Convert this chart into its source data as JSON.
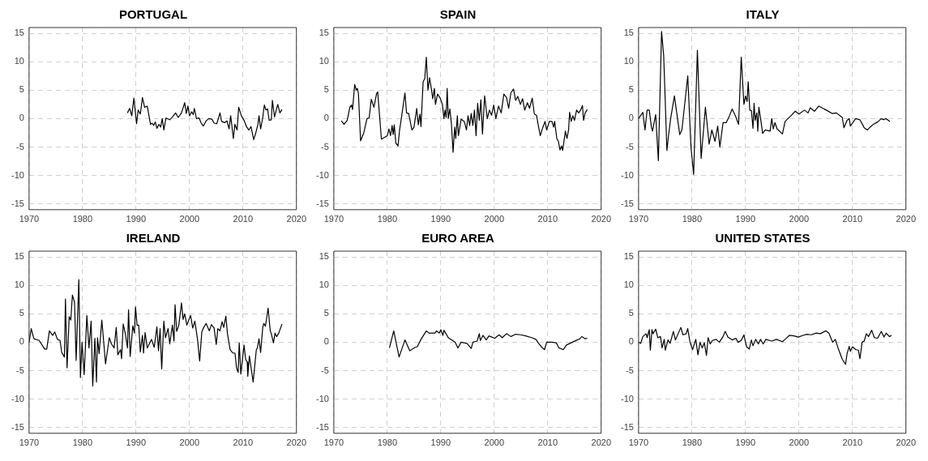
{
  "chart_data": [
    {
      "type": "line",
      "title": "PORTUGAL",
      "color": "#000000",
      "xlim": [
        1970,
        2020
      ],
      "xticks": [
        1970,
        1980,
        1990,
        2000,
        2010,
        2020
      ],
      "ylim": [
        -16,
        16
      ],
      "yticks": [
        -15,
        -10,
        -5,
        0,
        5,
        10,
        15
      ],
      "grid": true,
      "x": [
        1988.4,
        1988.8,
        1989.2,
        1989.6,
        1990.1,
        1990.4,
        1990.8,
        1991.2,
        1991.6,
        1992.1,
        1992.7,
        1993.0,
        1993.3,
        1993.6,
        1993.9,
        1994.3,
        1994.6,
        1994.9,
        1995.2,
        1995.6,
        1996.3,
        1996.8,
        1997.4,
        1997.9,
        1998.5,
        1999.1,
        1999.4,
        1999.7,
        2000.0,
        2000.4,
        2000.7,
        2000.9,
        2001.3,
        2001.8,
        2002.2,
        2002.6,
        2003.1,
        2003.6,
        2004.2,
        2004.6,
        2005.1,
        2005.7,
        2006.0,
        2006.6,
        2007.0,
        2007.4,
        2007.7,
        2008.2,
        2008.5,
        2008.9,
        2009.2,
        2009.7,
        2010.2,
        2010.7,
        2011.1,
        2011.5,
        2012.0,
        2012.4,
        2012.8,
        2013.0,
        2013.3,
        2013.7,
        2014.0,
        2014.3,
        2014.6,
        2014.9,
        2015.3,
        2015.5,
        2015.9,
        2016.5,
        2016.9,
        2017.3
      ],
      "values": [
        1.0,
        1.8,
        0.5,
        3.6,
        -0.9,
        1.5,
        0.8,
        3.7,
        2.0,
        2.2,
        -1.0,
        -0.8,
        -1.2,
        -0.6,
        -1.7,
        -1.0,
        -1.5,
        0.0,
        -2.0,
        0.1,
        -0.2,
        0.3,
        1.0,
        0.2,
        1.0,
        2.8,
        0.9,
        2.2,
        0.5,
        1.2,
        0.7,
        1.8,
        0.0,
        0.1,
        -0.8,
        -1.3,
        -0.4,
        0.0,
        -0.1,
        -0.8,
        -0.9,
        1.0,
        -0.5,
        -0.7,
        -0.4,
        -1.8,
        0.5,
        -3.5,
        -1.0,
        -2.0,
        2.0,
        0.5,
        -0.3,
        -1.5,
        -2.0,
        -1.4,
        -3.7,
        -2.5,
        -1.0,
        0.5,
        -1.8,
        0.2,
        2.4,
        1.5,
        1.7,
        -0.3,
        -0.2,
        3.2,
        0.3,
        2.5,
        1.0,
        1.6
      ]
    },
    {
      "type": "line",
      "title": "SPAIN",
      "color": "#000000",
      "xlim": [
        1970,
        2020
      ],
      "xticks": [
        1970,
        1980,
        1990,
        2000,
        2010,
        2020
      ],
      "ylim": [
        -16,
        16
      ],
      "yticks": [
        -15,
        -10,
        -5,
        0,
        5,
        10,
        15
      ],
      "grid": true,
      "x": [
        1971.4,
        1971.9,
        1972.5,
        1973.0,
        1973.3,
        1973.5,
        1973.9,
        1974.2,
        1974.4,
        1974.6,
        1975.0,
        1975.6,
        1976.2,
        1976.6,
        1977.0,
        1977.5,
        1978.0,
        1978.2,
        1978.9,
        1979.5,
        1980.0,
        1980.3,
        1980.6,
        1980.9,
        1981.1,
        1981.3,
        1981.6,
        1982.0,
        1982.3,
        1982.7,
        1983.3,
        1983.6,
        1984.0,
        1984.6,
        1985.0,
        1985.5,
        1985.8,
        1986.1,
        1986.3,
        1986.7,
        1987.0,
        1987.3,
        1987.6,
        1987.9,
        1988.2,
        1988.5,
        1988.8,
        1989.0,
        1989.4,
        1989.9,
        1990.3,
        1990.6,
        1990.8,
        1991.0,
        1991.2,
        1991.4,
        1991.7,
        1992.0,
        1992.3,
        1992.6,
        1992.8,
        1993.1,
        1993.3,
        1993.8,
        1994.4,
        1994.8,
        1995.1,
        1995.4,
        1995.7,
        1996.0,
        1996.3,
        1996.6,
        1996.9,
        1997.2,
        1997.5,
        1997.8,
        1998.2,
        1998.7,
        1999.1,
        1999.5,
        1999.9,
        2000.3,
        2000.8,
        2001.3,
        2001.8,
        2002.3,
        2002.7,
        2003.1,
        2003.6,
        2004.0,
        2004.4,
        2004.9,
        2005.3,
        2005.7,
        2006.2,
        2006.6,
        2007.1,
        2007.5,
        2007.9,
        2008.2,
        2008.6,
        2009.1,
        2009.5,
        2009.8,
        2010.3,
        2010.8,
        2011.1,
        2011.3,
        2011.7,
        2012.0,
        2012.3,
        2012.6,
        2012.8,
        2013.3,
        2013.6,
        2013.9,
        2014.1,
        2014.4,
        2014.7,
        2015.0,
        2015.4,
        2015.8,
        2016.2,
        2016.5,
        2016.7,
        2017.0,
        2017.4
      ],
      "values": [
        -0.4,
        -1.0,
        -0.3,
        2.0,
        2.4,
        1.6,
        6.0,
        5.0,
        5.3,
        4.4,
        -3.9,
        -2.5,
        0.0,
        0.1,
        3.4,
        2.0,
        4.4,
        4.7,
        -3.6,
        -3.3,
        -3.0,
        -1.8,
        -3.0,
        -1.2,
        -2.8,
        -1.1,
        -4.3,
        -4.8,
        -2.0,
        0.5,
        4.5,
        1.0,
        0.9,
        -2.0,
        -1.5,
        1.8,
        -1.1,
        0.8,
        -1.4,
        6.5,
        7.0,
        10.8,
        5.0,
        7.2,
        5.5,
        3.5,
        5.3,
        2.5,
        4.3,
        3.6,
        2.5,
        0.0,
        1.5,
        0.2,
        5.3,
        0.0,
        1.7,
        -1.0,
        -5.9,
        -1.5,
        -3.5,
        0.5,
        -3.0,
        -0.1,
        -0.5,
        -2.0,
        0.5,
        -1.2,
        0.9,
        -1.2,
        1.5,
        -3.0,
        2.7,
        -0.3,
        3.3,
        -2.7,
        4.0,
        0.0,
        1.5,
        0.6,
        2.4,
        0.0,
        2.2,
        1.0,
        4.3,
        3.7,
        1.8,
        4.5,
        5.2,
        3.2,
        3.9,
        2.5,
        3.5,
        1.5,
        2.8,
        1.8,
        3.6,
        0.8,
        0.6,
        -1.0,
        -3.0,
        -1.5,
        -0.5,
        -2.0,
        -0.5,
        -0.5,
        -1.5,
        -0.5,
        -3.5,
        -4.0,
        -5.5,
        -4.8,
        -5.6,
        -2.2,
        -3.5,
        -2.0,
        1.1,
        -0.5,
        0.5,
        -0.3,
        1.5,
        1.0,
        1.6,
        2.3,
        -0.3,
        1.0,
        1.6
      ]
    },
    {
      "type": "line",
      "title": "ITALY",
      "color": "#000000",
      "xlim": [
        1970,
        2020
      ],
      "xticks": [
        1970,
        1980,
        1990,
        2000,
        2010,
        2020
      ],
      "ylim": [
        -16,
        16
      ],
      "yticks": [
        -15,
        -10,
        -5,
        0,
        5,
        10,
        15
      ],
      "grid": true,
      "x": [
        1970.0,
        1970.8,
        1971.2,
        1971.6,
        1972.0,
        1972.4,
        1972.6,
        1973.2,
        1973.7,
        1974.3,
        1974.7,
        1975.3,
        1975.6,
        1976.0,
        1976.7,
        1977.7,
        1978.1,
        1979.2,
        1979.8,
        1980.3,
        1981.0,
        1981.7,
        1982.5,
        1983.2,
        1983.7,
        1984.3,
        1984.8,
        1985.2,
        1985.8,
        1986.4,
        1987.0,
        1987.5,
        1988.1,
        1988.7,
        1989.2,
        1989.7,
        1990.0,
        1990.3,
        1990.5,
        1990.8,
        1991.1,
        1991.4,
        1991.6,
        1991.8,
        1992.1,
        1992.3,
        1992.5,
        1992.9,
        1993.2,
        1993.7,
        1994.6,
        1994.9,
        1995.2,
        1995.5,
        1995.9,
        1996.9,
        1997.4,
        1998.5,
        1999.3,
        2000.0,
        2001.0,
        2001.7,
        2002.1,
        2002.9,
        2003.7,
        2005.1,
        2006.2,
        2007.0,
        2008.1,
        2008.4,
        2009.0,
        2009.4,
        2009.6,
        2010.6,
        2011.4,
        2012.2,
        2012.8,
        2013.3,
        2013.9,
        2014.7,
        2015.4,
        2015.8,
        2016.3,
        2017.0
      ],
      "values": [
        0.0,
        1.1,
        -2.0,
        1.5,
        1.5,
        -1.5,
        -2.2,
        0.7,
        -7.4,
        15.3,
        11.0,
        -5.6,
        -3.0,
        0.0,
        4.0,
        -2.8,
        -2.0,
        7.5,
        -5.0,
        -9.8,
        12.0,
        -7.0,
        2.0,
        -4.5,
        -2.0,
        -4.0,
        -1.3,
        -5.0,
        -0.7,
        -0.7,
        0.5,
        1.7,
        0.5,
        -1.0,
        10.8,
        2.5,
        4.0,
        3.0,
        6.5,
        1.5,
        1.4,
        -1.7,
        2.7,
        -0.3,
        1.0,
        -2.2,
        2.0,
        -0.5,
        -2.6,
        -2.0,
        -2.2,
        0.0,
        -1.8,
        -0.7,
        -1.8,
        -2.7,
        -0.5,
        0.5,
        1.3,
        0.8,
        1.5,
        1.0,
        1.9,
        1.3,
        2.2,
        1.5,
        0.9,
        1.0,
        0.2,
        -1.6,
        -0.3,
        0.0,
        -1.3,
        0.0,
        -0.2,
        -1.6,
        -2.0,
        -1.5,
        -1.0,
        -0.6,
        0.0,
        -0.2,
        0.0,
        -0.5
      ]
    },
    {
      "type": "line",
      "title": "IRELAND",
      "color": "#000000",
      "xlim": [
        1970,
        2020
      ],
      "xticks": [
        1970,
        1980,
        1990,
        2000,
        2010,
        2020
      ],
      "ylim": [
        -16,
        16
      ],
      "yticks": [
        -15,
        -10,
        -5,
        0,
        5,
        10,
        15
      ],
      "grid": true,
      "x": [
        1970.0,
        1970.4,
        1970.9,
        1971.9,
        1972.9,
        1973.3,
        1973.8,
        1974.4,
        1974.8,
        1975.3,
        1975.8,
        1976.1,
        1976.6,
        1976.8,
        1977.1,
        1977.5,
        1977.8,
        1978.1,
        1978.5,
        1978.8,
        1979.3,
        1979.6,
        1979.9,
        1980.3,
        1980.8,
        1981.2,
        1981.6,
        1981.9,
        1982.3,
        1982.6,
        1982.8,
        1983.1,
        1983.6,
        1984.3,
        1985.0,
        1985.4,
        1985.9,
        1986.3,
        1986.6,
        1987.1,
        1987.3,
        1987.6,
        1988.0,
        1988.4,
        1988.6,
        1988.9,
        1989.4,
        1989.7,
        1989.9,
        1990.2,
        1990.5,
        1990.8,
        1991.2,
        1991.4,
        1991.7,
        1992.1,
        1992.9,
        1993.4,
        1993.9,
        1994.2,
        1994.5,
        1994.8,
        1995.2,
        1995.5,
        1996.0,
        1996.3,
        1996.8,
        1997.1,
        1997.3,
        1997.6,
        1998.0,
        1998.5,
        1998.8,
        1999.1,
        1999.5,
        2000.2,
        2000.6,
        2001.0,
        2001.5,
        2001.9,
        2002.3,
        2002.6,
        2003.1,
        2003.7,
        2004.1,
        2004.6,
        2005.0,
        2005.3,
        2005.7,
        2006.1,
        2006.4,
        2006.8,
        2007.1,
        2007.6,
        2008.1,
        2008.5,
        2008.8,
        2009.1,
        2009.3,
        2009.6,
        2010.2,
        2010.5,
        2010.8,
        2010.9,
        2011.2,
        2011.9,
        2012.5,
        2012.7,
        2013.0,
        2013.3,
        2013.7,
        2013.9,
        2014.2,
        2014.7,
        2015.1,
        2015.3,
        2015.7,
        2016.0,
        2016.3,
        2016.7,
        2017.3
      ],
      "values": [
        0.0,
        2.4,
        0.6,
        0.3,
        -1.2,
        -1.2,
        2.0,
        1.2,
        1.8,
        0.5,
        0.3,
        -1.8,
        -2.6,
        7.6,
        -4.5,
        4.5,
        3.9,
        8.3,
        7.0,
        -3.2,
        11.0,
        -6.2,
        0.0,
        -5.7,
        4.7,
        -1.0,
        3.7,
        -7.7,
        0.7,
        -7.0,
        0.8,
        -2.0,
        3.9,
        -3.8,
        0.8,
        -0.3,
        -1.0,
        2.6,
        -2.2,
        -1.3,
        -2.9,
        3.2,
        1.5,
        -1.0,
        5.7,
        -2.5,
        2.9,
        1.6,
        6.2,
        3.0,
        3.0,
        -1.7,
        1.2,
        -1.9,
        1.7,
        -1.0,
        0.5,
        -0.9,
        2.7,
        -1.5,
        2.4,
        -4.7,
        3.7,
        0.8,
        2.4,
        -0.3,
        3.0,
        0.2,
        6.6,
        1.9,
        3.0,
        6.9,
        4.0,
        5.0,
        3.0,
        4.7,
        2.5,
        3.7,
        0.5,
        -3.3,
        1.8,
        2.5,
        3.3,
        2.0,
        3.1,
        2.5,
        -0.4,
        2.4,
        2.0,
        3.6,
        2.6,
        4.6,
        1.5,
        -1.3,
        -1.9,
        -1.9,
        -4.5,
        -5.3,
        -0.1,
        -5.6,
        -0.5,
        -3.0,
        -3.5,
        -6.0,
        -2.4,
        -7.0,
        -1.3,
        -1.0,
        0.6,
        -1.8,
        2.6,
        3.3,
        2.8,
        6.0,
        2.0,
        1.5,
        -0.1,
        1.6,
        1.0,
        1.6,
        3.2
      ]
    },
    {
      "type": "line",
      "title": "EURO AREA",
      "color": "#000000",
      "xlim": [
        1970,
        2020
      ],
      "xticks": [
        1970,
        1980,
        1990,
        2000,
        2010,
        2020
      ],
      "ylim": [
        -16,
        16
      ],
      "yticks": [
        -15,
        -10,
        -5,
        0,
        5,
        10,
        15
      ],
      "grid": true,
      "x": [
        1980.4,
        1981.2,
        1982.2,
        1983.3,
        1984.2,
        1985.2,
        1985.6,
        1986.3,
        1987.3,
        1987.8,
        1988.9,
        1989.2,
        1989.7,
        1990.0,
        1990.4,
        1990.6,
        1991.4,
        1992.2,
        1992.7,
        1993.2,
        1993.8,
        1994.9,
        1995.7,
        1996.0,
        1996.8,
        1997.2,
        1997.4,
        1997.9,
        1998.5,
        1999.0,
        2000.1,
        2000.9,
        2001.5,
        2002.3,
        2003.1,
        2004.0,
        2005.0,
        2005.9,
        2007.0,
        2007.8,
        2008.3,
        2008.9,
        2009.4,
        2009.8,
        2010.8,
        2011.6,
        2012.1,
        2012.9,
        2013.5,
        2014.6,
        2015.5,
        2016.0,
        2016.4,
        2017.0,
        2017.4
      ],
      "values": [
        -1.0,
        2.0,
        -2.6,
        0.4,
        -1.5,
        -0.9,
        -0.8,
        0.5,
        2.0,
        1.6,
        1.6,
        2.0,
        1.6,
        2.2,
        1.2,
        2.1,
        0.8,
        0.3,
        0.0,
        -1.0,
        0.0,
        -0.2,
        -1.1,
        0.0,
        0.2,
        1.5,
        0.3,
        1.2,
        0.4,
        1.1,
        0.7,
        1.3,
        0.8,
        1.5,
        1.0,
        1.4,
        1.3,
        1.1,
        0.8,
        0.5,
        -0.2,
        -0.9,
        -1.3,
        0.0,
        0.0,
        -0.1,
        -1.0,
        -1.3,
        -0.5,
        0.0,
        0.4,
        0.6,
        1.0,
        0.6,
        0.7
      ]
    },
    {
      "type": "line",
      "title": "UNITED STATES",
      "color": "#000000",
      "xlim": [
        1970,
        2020
      ],
      "xticks": [
        1970,
        1980,
        1990,
        2000,
        2010,
        2020
      ],
      "ylim": [
        -16,
        16
      ],
      "yticks": [
        -15,
        -10,
        -5,
        0,
        5,
        10,
        15
      ],
      "grid": true,
      "x": [
        1970.0,
        1970.4,
        1970.8,
        1971.4,
        1971.6,
        1972.0,
        1972.2,
        1972.5,
        1972.7,
        1973.2,
        1973.6,
        1974.1,
        1974.4,
        1974.8,
        1975.0,
        1975.5,
        1975.9,
        1976.5,
        1976.9,
        1977.4,
        1977.9,
        1978.3,
        1978.9,
        1979.2,
        1979.6,
        1980.1,
        1980.7,
        1981.1,
        1981.5,
        1981.9,
        1982.3,
        1982.7,
        1983.0,
        1983.4,
        1983.8,
        1984.5,
        1985.1,
        1985.8,
        1986.2,
        1986.7,
        1987.5,
        1988.2,
        1988.6,
        1989.2,
        1989.7,
        1990.2,
        1990.7,
        1991.1,
        1991.4,
        1991.9,
        1992.4,
        1992.8,
        1993.3,
        1993.8,
        1994.9,
        1995.8,
        1996.9,
        1997.4,
        1998.2,
        1999.1,
        1999.9,
        2000.7,
        2001.5,
        2002.3,
        2003.2,
        2004.0,
        2005.0,
        2005.6,
        2006.3,
        2006.8,
        2007.3,
        2008.1,
        2008.7,
        2009.0,
        2009.4,
        2009.6,
        2010.0,
        2010.6,
        2011.1,
        2011.4,
        2011.8,
        2012.2,
        2012.6,
        2013.0,
        2013.6,
        2014.1,
        2014.7,
        2015.4,
        2015.9,
        2016.3,
        2016.9,
        2017.3
      ],
      "values": [
        0.0,
        -0.2,
        1.0,
        1.5,
        0.8,
        2.2,
        -1.4,
        2.2,
        1.5,
        2.3,
        0.8,
        1.0,
        -1.0,
        0.5,
        -1.4,
        0.4,
        -0.2,
        1.9,
        0.4,
        1.5,
        2.6,
        1.3,
        1.5,
        2.4,
        0.1,
        -1.3,
        0.5,
        -2.2,
        0.0,
        -1.0,
        -0.1,
        -2.3,
        0.8,
        -0.3,
        0.3,
        0.5,
        0.0,
        1.0,
        1.9,
        0.9,
        0.4,
        0.7,
        0.0,
        0.3,
        1.3,
        -0.8,
        -1.2,
        0.4,
        -0.6,
        0.5,
        -0.3,
        0.5,
        -0.3,
        0.5,
        0.2,
        0.5,
        0.1,
        0.5,
        1.2,
        1.1,
        0.9,
        1.2,
        1.4,
        1.3,
        1.6,
        1.5,
        2.0,
        1.6,
        0.0,
        0.5,
        -1.0,
        -3.0,
        -3.9,
        -2.0,
        -0.7,
        -1.6,
        -0.8,
        -1.3,
        -1.4,
        -2.9,
        0.0,
        0.2,
        1.5,
        1.0,
        2.1,
        0.8,
        0.7,
        1.9,
        0.9,
        1.6,
        1.0,
        1.2
      ]
    }
  ]
}
